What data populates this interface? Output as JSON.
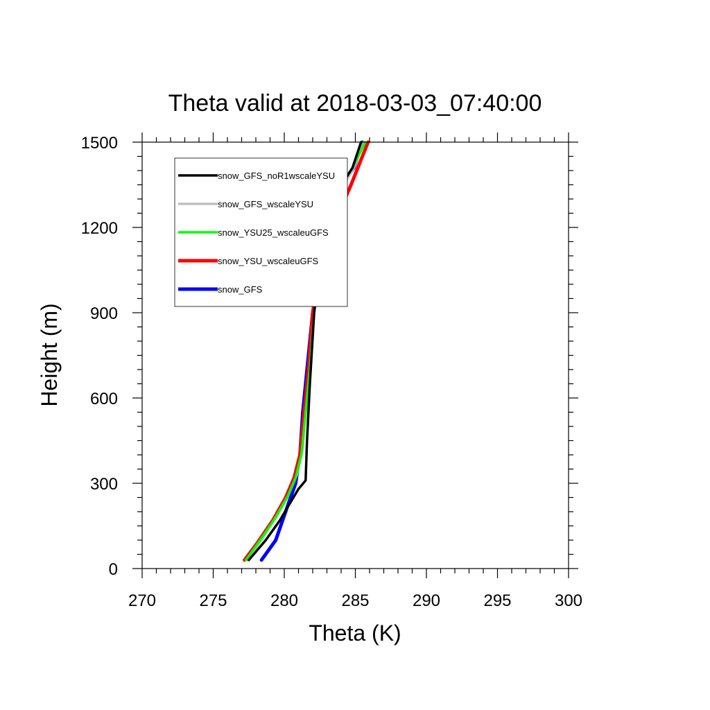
{
  "chart_data": {
    "type": "line",
    "title": "Theta valid at 2018-03-03_07:40:00",
    "xlabel": "Theta (K)",
    "ylabel": "Height (m)",
    "xlim": [
      270,
      300
    ],
    "ylim": [
      0,
      1500
    ],
    "xticks": [
      270,
      275,
      280,
      285,
      290,
      295,
      300
    ],
    "yticks": [
      0,
      300,
      600,
      900,
      1200,
      1500
    ],
    "grid": false,
    "legend_position": "top-left",
    "series": [
      {
        "name": "snow_GFS",
        "color": "#0000ff",
        "points": [
          [
            278.4,
            30
          ],
          [
            279.4,
            100
          ],
          [
            280.3,
            230
          ],
          [
            280.8,
            300
          ],
          [
            281.1,
            400
          ],
          [
            281.3,
            550
          ],
          [
            281.6,
            700
          ],
          [
            282.0,
            900
          ],
          [
            282.4,
            1000
          ],
          [
            282.7,
            1100
          ],
          [
            283.3,
            1300
          ],
          [
            284.9,
            1410
          ],
          [
            285.5,
            1500
          ]
        ]
      },
      {
        "name": "snow_YSU_wscaleuGFS",
        "color": "#ff0000",
        "points": [
          [
            277.2,
            30
          ],
          [
            278.1,
            90
          ],
          [
            279.2,
            170
          ],
          [
            280.1,
            250
          ],
          [
            280.7,
            320
          ],
          [
            281.1,
            400
          ],
          [
            281.4,
            550
          ],
          [
            281.7,
            700
          ],
          [
            282.0,
            900
          ],
          [
            282.3,
            1000
          ],
          [
            282.7,
            1100
          ],
          [
            283.4,
            1200
          ],
          [
            284.7,
            1350
          ],
          [
            285.9,
            1500
          ]
        ]
      },
      {
        "name": "snow_GFS_wscaleYSU",
        "color": "#c0c0c0",
        "points": [
          [
            277.4,
            30
          ],
          [
            278.4,
            100
          ],
          [
            279.5,
            190
          ],
          [
            280.3,
            260
          ],
          [
            280.9,
            330
          ],
          [
            281.3,
            420
          ],
          [
            281.5,
            550
          ],
          [
            281.8,
            700
          ],
          [
            282.1,
            900
          ],
          [
            282.5,
            1050
          ],
          [
            282.9,
            1200
          ],
          [
            283.6,
            1300
          ],
          [
            284.9,
            1410
          ],
          [
            285.6,
            1500
          ]
        ]
      },
      {
        "name": "snow_YSU25_wscaleuGFS",
        "color": "#00ff00",
        "points": [
          [
            277.3,
            30
          ],
          [
            278.3,
            100
          ],
          [
            279.4,
            180
          ],
          [
            280.2,
            250
          ],
          [
            280.8,
            320
          ],
          [
            281.2,
            400
          ],
          [
            281.5,
            550
          ],
          [
            281.8,
            700
          ],
          [
            282.1,
            900
          ],
          [
            282.4,
            1000
          ],
          [
            282.8,
            1150
          ],
          [
            283.4,
            1300
          ],
          [
            284.8,
            1410
          ],
          [
            285.7,
            1500
          ]
        ]
      },
      {
        "name": "snow_GFS_noR1wscaleYSU",
        "color": "#000000",
        "points": [
          [
            277.5,
            30
          ],
          [
            278.7,
            100
          ],
          [
            279.7,
            170
          ],
          [
            280.4,
            230
          ],
          [
            281.0,
            280
          ],
          [
            281.5,
            310
          ],
          [
            281.6,
            450
          ],
          [
            281.8,
            650
          ],
          [
            282.1,
            900
          ],
          [
            282.5,
            1100
          ],
          [
            283.4,
            1300
          ],
          [
            284.8,
            1410
          ],
          [
            285.4,
            1500
          ]
        ]
      }
    ]
  },
  "legend": {
    "entries": [
      {
        "name": "snow_GFS_noR1wscaleYSU",
        "color": "#000000",
        "width": 3.5
      },
      {
        "name": "snow_GFS_wscaleYSU",
        "color": "#c0c0c0",
        "width": 3.5
      },
      {
        "name": "snow_YSU25_wscaleuGFS",
        "color": "#00ff00",
        "width": 3.5
      },
      {
        "name": "snow_YSU_wscaleuGFS",
        "color": "#ff0000",
        "width": 5
      },
      {
        "name": "snow_GFS",
        "color": "#0000ff",
        "width": 5
      }
    ]
  }
}
